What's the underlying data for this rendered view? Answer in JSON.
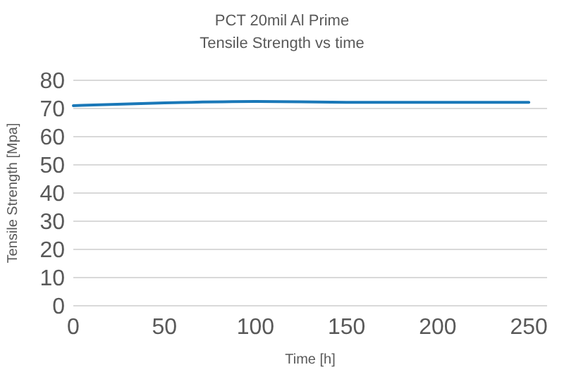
{
  "chart_data": {
    "type": "line",
    "title": "PCT 20mil Al Prime",
    "subtitle": "Tensile Strength vs time",
    "xlabel": "Time [h]",
    "ylabel": "Tensile Strength [Mpa]",
    "series": [
      {
        "color": "#1a78b8",
        "x": [
          0,
          50,
          100,
          150,
          200,
          250
        ],
        "values": [
          71,
          72,
          72.5,
          72.2,
          72.2,
          72.2
        ]
      }
    ],
    "xlim": [
      0,
      260
    ],
    "xticks": [
      0,
      50,
      100,
      150,
      200,
      250
    ],
    "ylim": [
      0,
      80
    ],
    "yticks": [
      0,
      10,
      20,
      30,
      40,
      50,
      60,
      70,
      80
    ],
    "grid": "y",
    "marker": "none",
    "line_style": "solid"
  }
}
